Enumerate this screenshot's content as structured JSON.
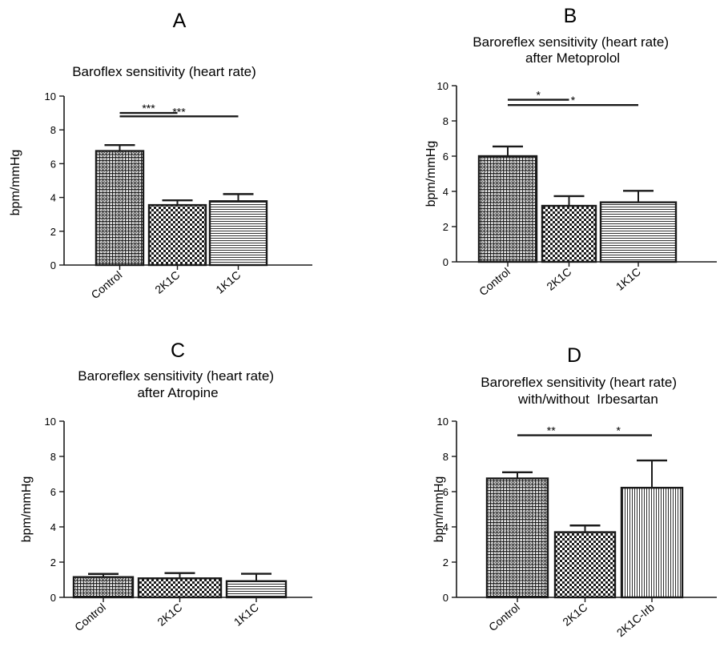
{
  "chart_data": [
    {
      "type": "bar",
      "panel_label": "A",
      "title": "Baroflex sensitivity  (heart rate)",
      "ylabel": "bpm/mmHg",
      "xlabel": "",
      "ylim": [
        0,
        10
      ],
      "yticks": [
        "0",
        "2",
        "4",
        "6",
        "8",
        "10"
      ],
      "categories": [
        "Control",
        "2K1C",
        "1K1C"
      ],
      "values": [
        6.75,
        3.55,
        3.78
      ],
      "errors": [
        0.35,
        0.28,
        0.42
      ],
      "patterns": [
        "grid",
        "checker",
        "hlines"
      ],
      "significance": [
        {
          "from": 0,
          "to": 1,
          "label": "***",
          "y": 9.0
        },
        {
          "from": 0,
          "to": 2,
          "label": "***",
          "y": 8.8
        }
      ]
    },
    {
      "type": "bar",
      "panel_label": "B",
      "title": "Baroreflex sensitivity (heart rate)\nafter Metoprolol",
      "ylabel": "bpm/mmHg",
      "xlabel": "",
      "ylim": [
        0,
        10
      ],
      "yticks": [
        "0",
        "2",
        "4",
        "6",
        "8",
        "10"
      ],
      "categories": [
        "Control",
        "2K1C",
        "1K1C"
      ],
      "values": [
        6.0,
        3.18,
        3.38
      ],
      "errors": [
        0.55,
        0.55,
        0.65
      ],
      "patterns": [
        "grid",
        "checker",
        "hlines"
      ],
      "significance": [
        {
          "from": 0,
          "to": 1,
          "label": "*",
          "y": 9.2
        },
        {
          "from": 0,
          "to": 2,
          "label": "*",
          "y": 8.9
        }
      ]
    },
    {
      "type": "bar",
      "panel_label": "C",
      "title": "Baroreflex sensitivity (heart rate)\nafter Atropine",
      "ylabel": "bpm/mmHg",
      "xlabel": "",
      "ylim": [
        0,
        10
      ],
      "yticks": [
        "0",
        "2",
        "4",
        "6",
        "8",
        "10"
      ],
      "categories": [
        "Control",
        "2K1C",
        "1K1C"
      ],
      "values": [
        1.15,
        1.08,
        0.92
      ],
      "errors": [
        0.18,
        0.3,
        0.42
      ],
      "patterns": [
        "grid",
        "checker",
        "hlines"
      ],
      "significance": []
    },
    {
      "type": "bar",
      "panel_label": "D",
      "title": "Baroreflex sensitivity (heart rate)\n    with/without  Irbesartan",
      "ylabel": "bpm/mmHg",
      "xlabel": "",
      "ylim": [
        0,
        10
      ],
      "yticks": [
        "0",
        "2",
        "4",
        "6",
        "8",
        "10"
      ],
      "categories": [
        "Control",
        "2K1C",
        "2K1C-Irb"
      ],
      "values": [
        6.75,
        3.7,
        6.22
      ],
      "errors": [
        0.35,
        0.38,
        1.55
      ],
      "patterns": [
        "grid",
        "checker",
        "vlines"
      ],
      "significance": [
        {
          "from": 0,
          "to": 1,
          "label": "**",
          "y": 9.2
        },
        {
          "from": 1,
          "to": 2,
          "label": "*",
          "y": 9.2
        }
      ]
    }
  ]
}
